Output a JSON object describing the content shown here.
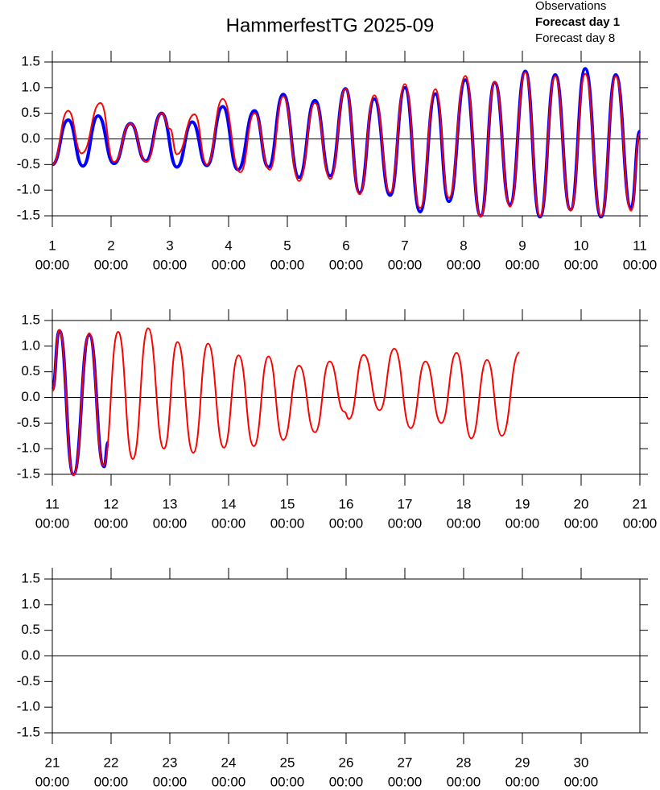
{
  "title": "HammerfestTG 2025-09",
  "legend": [
    {
      "name": "Observations",
      "color": "#000000"
    },
    {
      "name": "Forecast day 1",
      "color": "#0000ff"
    },
    {
      "name": "Forecast day 8",
      "color": "#ff0000"
    }
  ],
  "chart_data": [
    {
      "type": "line",
      "xlim": [
        1,
        11
      ],
      "ylim": [
        -1.5,
        1.5
      ],
      "zero_line": true,
      "yticks": [
        -1.5,
        {
          "value": -1.0,
          "label": "-1.0"
        },
        -0.5,
        {
          "value": 0,
          "label": "0.0"
        },
        0.5,
        {
          "value": 1.0,
          "label": "1.0"
        },
        1.5
      ],
      "xticks": [
        {
          "value": 1,
          "label": [
            "1",
            "00:00"
          ]
        },
        {
          "value": 2,
          "label": [
            "2",
            "00:00"
          ]
        },
        {
          "value": 3,
          "label": [
            "3",
            "00:00"
          ]
        },
        {
          "value": 4,
          "label": [
            "4",
            "00:00"
          ]
        },
        {
          "value": 5,
          "label": [
            "5",
            "00:00"
          ]
        },
        {
          "value": 6,
          "label": [
            "6",
            "00:00"
          ]
        },
        {
          "value": 7,
          "label": [
            "7",
            "00:00"
          ]
        },
        {
          "value": 8,
          "label": [
            "8",
            "00:00"
          ]
        },
        {
          "value": 9,
          "label": [
            "9",
            "00:00"
          ]
        },
        {
          "value": 10,
          "label": [
            "10",
            "00:00"
          ]
        },
        {
          "value": 11,
          "label": [
            "11",
            "00:00"
          ]
        }
      ],
      "series": [
        {
          "name": "Forecast day 1",
          "color": "#0000ff",
          "width": 4,
          "x": [
            1.0,
            1.27,
            1.52,
            1.78,
            2.05,
            2.33,
            2.59,
            2.86,
            3.12,
            3.38,
            3.63,
            3.9,
            4.16,
            4.44,
            4.68,
            4.93,
            5.2,
            5.47,
            5.73,
            5.99,
            6.23,
            6.48,
            6.75,
            7.0,
            7.26,
            7.52,
            7.75,
            8.03,
            8.29,
            8.53,
            8.79,
            9.05,
            9.3,
            9.56,
            9.82,
            10.07,
            10.34,
            10.59,
            10.85,
            11.0
          ],
          "values": [
            -0.5,
            0.37,
            -0.53,
            0.45,
            -0.48,
            0.3,
            -0.43,
            0.5,
            -0.55,
            0.33,
            -0.52,
            0.63,
            -0.6,
            0.55,
            -0.55,
            0.87,
            -0.75,
            0.75,
            -0.72,
            0.98,
            -1.05,
            0.78,
            -1.1,
            1.0,
            -1.42,
            0.88,
            -1.22,
            1.15,
            -1.5,
            1.1,
            -1.28,
            1.32,
            -1.52,
            1.25,
            -1.38,
            1.37,
            -1.52,
            1.25,
            -1.35,
            0.15
          ]
        },
        {
          "name": "Forecast day 8",
          "color": "#ff0000",
          "width": 2,
          "x": [
            1.0,
            1.27,
            1.5,
            1.82,
            2.05,
            2.33,
            2.6,
            2.86,
            3.0,
            3.12,
            3.42,
            3.63,
            3.9,
            4.2,
            4.44,
            4.7,
            4.93,
            5.2,
            5.47,
            5.73,
            5.99,
            6.23,
            6.48,
            6.75,
            7.0,
            7.26,
            7.52,
            7.75,
            8.03,
            8.29,
            8.53,
            8.79,
            9.05,
            9.3,
            9.56,
            9.82,
            10.07,
            10.34,
            10.59,
            10.85,
            11.0
          ],
          "values": [
            -0.5,
            0.55,
            -0.28,
            0.7,
            -0.45,
            0.3,
            -0.45,
            0.5,
            0.2,
            -0.3,
            0.48,
            -0.5,
            0.78,
            -0.65,
            0.5,
            -0.6,
            0.83,
            -0.82,
            0.7,
            -0.78,
            0.98,
            -1.08,
            0.85,
            -1.05,
            1.07,
            -1.35,
            0.97,
            -1.15,
            1.23,
            -1.52,
            1.12,
            -1.32,
            1.3,
            -1.5,
            1.22,
            -1.4,
            1.27,
            -1.5,
            1.22,
            -1.4,
            0.1
          ]
        }
      ]
    },
    {
      "type": "line",
      "xlim": [
        11,
        21
      ],
      "ylim": [
        -1.5,
        1.5
      ],
      "zero_line": true,
      "yticks": [
        -1.5,
        {
          "value": -1.0,
          "label": "-1.0"
        },
        -0.5,
        {
          "value": 0,
          "label": "0.0"
        },
        0.5,
        {
          "value": 1.0,
          "label": "1.0"
        },
        1.5
      ],
      "xticks": [
        {
          "value": 11,
          "label": [
            "11",
            "00:00"
          ]
        },
        {
          "value": 12,
          "label": [
            "12",
            "00:00"
          ]
        },
        {
          "value": 13,
          "label": [
            "13",
            "00:00"
          ]
        },
        {
          "value": 14,
          "label": [
            "14",
            "00:00"
          ]
        },
        {
          "value": 15,
          "label": [
            "15",
            "00:00"
          ]
        },
        {
          "value": 16,
          "label": [
            "16",
            "00:00"
          ]
        },
        {
          "value": 17,
          "label": [
            "17",
            "00:00"
          ]
        },
        {
          "value": 18,
          "label": [
            "18",
            "00:00"
          ]
        },
        {
          "value": 19,
          "label": [
            "19",
            "00:00"
          ]
        },
        {
          "value": 20,
          "label": [
            "20",
            "00:00"
          ]
        },
        {
          "value": 21,
          "label": [
            "21",
            "00:00"
          ]
        }
      ],
      "series": [
        {
          "name": "Forecast day 1",
          "color": "#0000ff",
          "width": 4,
          "x": [
            11.0,
            11.12,
            11.36,
            11.63,
            11.88,
            11.95
          ],
          "values": [
            0.15,
            1.3,
            -1.5,
            1.22,
            -1.35,
            -0.88
          ]
        },
        {
          "name": "Forecast day 8",
          "color": "#ff0000",
          "width": 2,
          "x": [
            11.0,
            11.12,
            11.36,
            11.63,
            11.87,
            12.12,
            12.37,
            12.63,
            12.9,
            13.13,
            13.4,
            13.65,
            13.92,
            14.17,
            14.43,
            14.68,
            14.93,
            15.2,
            15.47,
            15.72,
            15.97,
            16.05,
            16.3,
            16.57,
            16.82,
            17.1,
            17.35,
            17.62,
            17.88,
            18.13,
            18.4,
            18.65,
            18.95
          ],
          "values": [
            0.12,
            1.32,
            -1.52,
            1.25,
            -1.33,
            1.28,
            -1.2,
            1.35,
            -1.0,
            1.08,
            -1.08,
            1.05,
            -0.98,
            0.82,
            -0.95,
            0.8,
            -0.83,
            0.62,
            -0.68,
            0.7,
            -0.28,
            -0.42,
            0.83,
            -0.25,
            0.95,
            -0.6,
            0.7,
            -0.5,
            0.87,
            -0.8,
            0.73,
            -0.75,
            0.88
          ]
        }
      ]
    },
    {
      "type": "line",
      "xlim": [
        21,
        31
      ],
      "ylim": [
        -1.5,
        1.5
      ],
      "zero_line": true,
      "yticks": [
        -1.5,
        {
          "value": -1.0,
          "label": "-1.0"
        },
        -0.5,
        {
          "value": 0,
          "label": "0.0"
        },
        0.5,
        {
          "value": 1.0,
          "label": "1.0"
        },
        1.5
      ],
      "xticks": [
        {
          "value": 21,
          "label": [
            "21",
            "00:00"
          ]
        },
        {
          "value": 22,
          "label": [
            "22",
            "00:00"
          ]
        },
        {
          "value": 23,
          "label": [
            "23",
            "00:00"
          ]
        },
        {
          "value": 24,
          "label": [
            "24",
            "00:00"
          ]
        },
        {
          "value": 25,
          "label": [
            "25",
            "00:00"
          ]
        },
        {
          "value": 26,
          "label": [
            "26",
            "00:00"
          ]
        },
        {
          "value": 27,
          "label": [
            "27",
            "00:00"
          ]
        },
        {
          "value": 28,
          "label": [
            "28",
            "00:00"
          ]
        },
        {
          "value": 29,
          "label": [
            "29",
            "00:00"
          ]
        },
        {
          "value": 30,
          "label": [
            "30",
            "00:00"
          ]
        }
      ],
      "series": []
    }
  ]
}
